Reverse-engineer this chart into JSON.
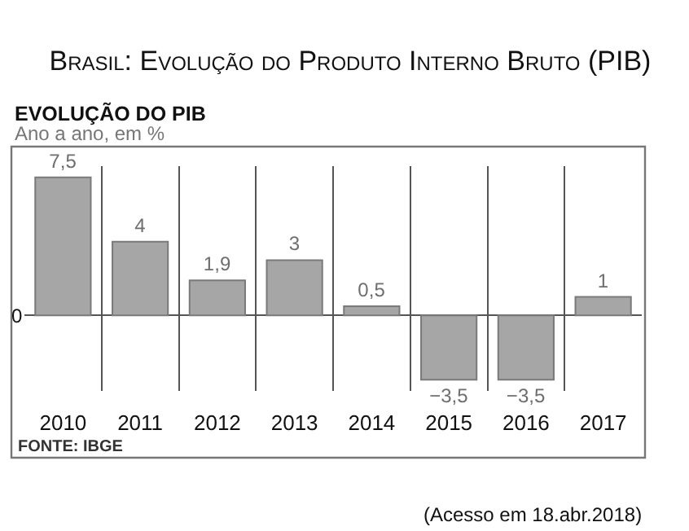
{
  "chart_data": {
    "type": "bar",
    "title": "Brasil: Evolução do Produto Interno Bruto (PIB)",
    "subtitle": "EVOLUÇÃO DO PIB",
    "ylabel": "Ano a ano, em %",
    "categories": [
      "2010",
      "2011",
      "2012",
      "2013",
      "2014",
      "2015",
      "2016",
      "2017"
    ],
    "values": [
      7.5,
      4,
      1.9,
      3,
      0.5,
      -3.5,
      -3.5,
      1
    ],
    "value_labels": [
      "7,5",
      "4",
      "1,9",
      "3",
      "0,5",
      "−3,5",
      "−3,5",
      "1"
    ],
    "color": "#a6a6a6",
    "grid": "x",
    "annotations": [
      "0",
      "FONTE: IBGE",
      "(Acesso em 18.abr.2018)"
    ]
  }
}
